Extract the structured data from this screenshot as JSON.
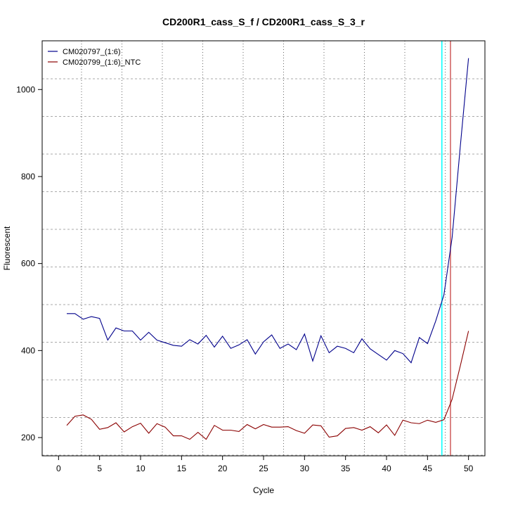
{
  "chart_data": {
    "type": "line",
    "title": "CD200R1_cass_S_f / CD200R1_cass_S_3_r",
    "xlabel": "Cycle",
    "ylabel": "Fluorescent",
    "xlim": [
      -2,
      52
    ],
    "ylim": [
      158,
      1112
    ],
    "xticks": [
      0,
      5,
      10,
      15,
      20,
      25,
      30,
      35,
      40,
      45,
      50
    ],
    "yticks": [
      200,
      400,
      600,
      800,
      1000
    ],
    "legend_position": "top-left",
    "x": [
      1,
      2,
      3,
      4,
      5,
      6,
      7,
      8,
      9,
      10,
      11,
      12,
      13,
      14,
      15,
      16,
      17,
      18,
      19,
      20,
      21,
      22,
      23,
      24,
      25,
      26,
      27,
      28,
      29,
      30,
      31,
      32,
      33,
      34,
      35,
      36,
      37,
      38,
      39,
      40,
      41,
      42,
      43,
      44,
      45,
      46,
      47,
      48,
      49,
      50
    ],
    "series": [
      {
        "name": "CM020797_(1:6)",
        "color": "#00008B",
        "values": [
          485,
          485,
          472,
          478,
          474,
          424,
          452,
          445,
          445,
          424,
          442,
          424,
          418,
          412,
          410,
          425,
          415,
          435,
          408,
          433,
          405,
          413,
          425,
          392,
          420,
          436,
          405,
          415,
          402,
          438,
          376,
          434,
          395,
          410,
          405,
          395,
          427,
          404,
          391,
          378,
          400,
          393,
          372,
          430,
          416,
          468,
          528,
          660,
          870,
          1072
        ]
      },
      {
        "name": "CM020799_(1:6)_NTC",
        "color": "#8B0000",
        "values": [
          228,
          249,
          252,
          242,
          219,
          223,
          234,
          213,
          225,
          233,
          210,
          232,
          224,
          204,
          204,
          196,
          212,
          196,
          228,
          217,
          217,
          214,
          230,
          220,
          230,
          224,
          224,
          225,
          216,
          210,
          229,
          227,
          201,
          204,
          221,
          223,
          217,
          225,
          211,
          229,
          205,
          240,
          234,
          232,
          240,
          235,
          241,
          288,
          365,
          445
        ]
      }
    ],
    "threshold_lines": [
      {
        "cycle": 46.75,
        "color": "#00FFFF"
      },
      {
        "cycle": 47.8,
        "color": "#CD5C5C"
      }
    ]
  }
}
